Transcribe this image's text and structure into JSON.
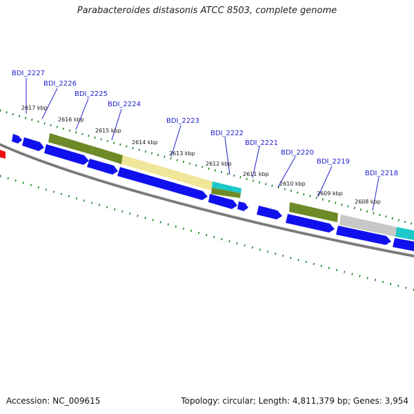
{
  "title": "Parabacteroides distasonis ATCC 8503, complete genome",
  "footer": {
    "accession_label": "Accession:",
    "accession": "NC_009615",
    "info": "Topology: circular; Length: 4,811,379 bp; Genes: 3,954"
  },
  "colors": {
    "gene_blue": "#1010ee",
    "rna_red": "#ee1010",
    "tick_green": "#127a12",
    "backbone_gray": "#777777",
    "olive": "#6d8a26",
    "khaki": "#efe69a",
    "cyan": "#1cc8c8",
    "silver": "#c8c8c8"
  },
  "genes": [
    {
      "label": "BDI_2227"
    },
    {
      "label": "BDI_2226"
    },
    {
      "label": "BDI_2225"
    },
    {
      "label": "BDI_2224"
    },
    {
      "label": "BDI_2223"
    },
    {
      "label": "BDI_2222"
    },
    {
      "label": "BDI_2221"
    },
    {
      "label": "BDI_2220"
    },
    {
      "label": "BDI_2219"
    },
    {
      "label": "BDI_2218"
    }
  ],
  "kbp_ticks": [
    {
      "label": "2617 kbp"
    },
    {
      "label": "2616 kbp"
    },
    {
      "label": "2615 kbp"
    },
    {
      "label": "2614 kbp"
    },
    {
      "label": "2613 kbp"
    },
    {
      "label": "2612 kbp"
    },
    {
      "label": "2611 kbp"
    },
    {
      "label": "2610 kbp"
    },
    {
      "label": "2609 kbp"
    },
    {
      "label": "2608 kbp"
    }
  ]
}
